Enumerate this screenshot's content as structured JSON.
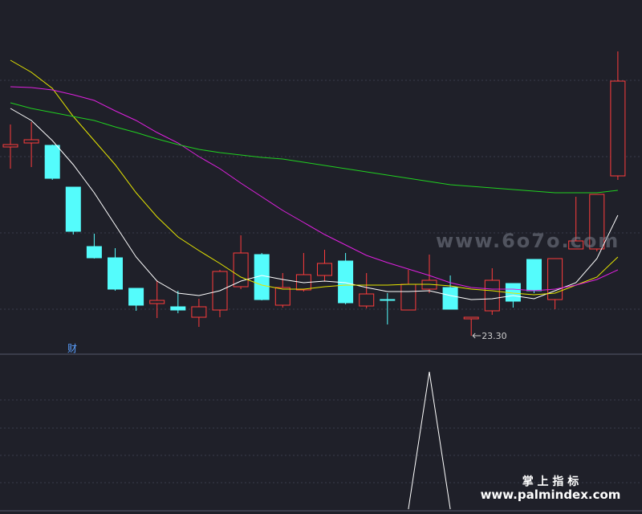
{
  "chart_data": [
    {
      "type": "candlestick",
      "open": [
        25.65,
        25.7,
        25.67,
        25.15,
        24.41,
        24.27,
        23.89,
        23.7,
        23.66,
        23.53,
        23.62,
        23.91,
        24.31,
        23.68,
        23.87,
        24.05,
        24.23,
        23.67,
        23.75,
        23.62,
        23.88,
        23.9,
        23.51,
        23.61,
        23.95,
        24.25,
        23.75,
        24.38,
        24.38,
        25.29
      ],
      "close": [
        25.68,
        25.74,
        25.26,
        24.6,
        24.27,
        23.88,
        23.68,
        23.74,
        23.62,
        23.66,
        24.1,
        24.33,
        23.75,
        23.9,
        24.06,
        24.2,
        23.71,
        23.82,
        23.75,
        23.94,
        23.99,
        23.63,
        23.53,
        23.99,
        23.73,
        23.86,
        24.26,
        24.48,
        25.06,
        26.47
      ],
      "high": [
        25.93,
        25.96,
        25.68,
        25.15,
        24.57,
        24.39,
        23.89,
        23.99,
        23.86,
        23.76,
        24.12,
        24.55,
        24.33,
        24.08,
        24.33,
        24.37,
        24.33,
        24.08,
        23.83,
        24.12,
        24.31,
        24.05,
        23.53,
        24.14,
        23.95,
        24.25,
        24.26,
        25.03,
        25.06,
        26.84
      ],
      "low": [
        25.38,
        25.4,
        25.24,
        24.56,
        24.26,
        23.86,
        23.61,
        23.52,
        23.58,
        23.41,
        23.53,
        23.88,
        23.74,
        23.65,
        23.85,
        23.98,
        23.69,
        23.64,
        23.44,
        23.62,
        23.83,
        23.63,
        23.3,
        23.56,
        23.65,
        23.83,
        23.63,
        24.38,
        24.35,
        25.24
      ],
      "up_color": "#ff3c3c",
      "down_color": "#54fcfc",
      "ylim": [
        23.08,
        27.48
      ],
      "series": [
        {
          "color": "#ffffff",
          "values": [
            26.13,
            25.98,
            25.73,
            25.43,
            25.08,
            24.68,
            24.28,
            23.98,
            23.83,
            23.8,
            23.86,
            23.98,
            24.05,
            24.0,
            23.96,
            23.98,
            23.96,
            23.9,
            23.85,
            23.85,
            23.86,
            23.8,
            23.75,
            23.76,
            23.8,
            23.76,
            23.86,
            23.96,
            24.26,
            24.8
          ]
        },
        {
          "color": "#e6e600",
          "values": [
            26.73,
            26.58,
            26.38,
            26.03,
            25.73,
            25.43,
            25.08,
            24.78,
            24.53,
            24.36,
            24.2,
            24.03,
            23.93,
            23.88,
            23.88,
            23.91,
            23.93,
            23.93,
            23.93,
            23.94,
            23.94,
            23.92,
            23.88,
            23.86,
            23.83,
            23.81,
            23.83,
            23.93,
            24.03,
            24.28
          ]
        },
        {
          "color": "#e020e0",
          "values": [
            26.4,
            26.39,
            26.36,
            26.3,
            26.23,
            26.1,
            25.98,
            25.83,
            25.7,
            25.53,
            25.38,
            25.2,
            25.03,
            24.86,
            24.71,
            24.56,
            24.43,
            24.3,
            24.21,
            24.13,
            24.05,
            23.96,
            23.9,
            23.88,
            23.88,
            23.86,
            23.88,
            23.93,
            24.0,
            24.12
          ]
        },
        {
          "color": "#20d020",
          "values": [
            26.2,
            26.13,
            26.08,
            26.03,
            25.98,
            25.9,
            25.83,
            25.75,
            25.68,
            25.62,
            25.58,
            25.55,
            25.52,
            25.5,
            25.46,
            25.42,
            25.38,
            25.34,
            25.3,
            25.26,
            25.22,
            25.18,
            25.16,
            25.14,
            25.12,
            25.1,
            25.08,
            25.08,
            25.08,
            25.11
          ]
        }
      ],
      "low_annotation": "23.30",
      "label": "财"
    },
    {
      "type": "line",
      "ylim": [
        0,
        1
      ],
      "series": [
        {
          "color": "#ffffff",
          "values": [
            null,
            null,
            null,
            null,
            null,
            null,
            null,
            null,
            null,
            null,
            null,
            null,
            null,
            null,
            null,
            null,
            null,
            null,
            null,
            0,
            1,
            0,
            null,
            null,
            null,
            null,
            null,
            null,
            null,
            null
          ]
        }
      ]
    }
  ],
  "watermarks": [
    "www.6o7o.com",
    "掌 上 指 标",
    "www.palmindex.com"
  ]
}
